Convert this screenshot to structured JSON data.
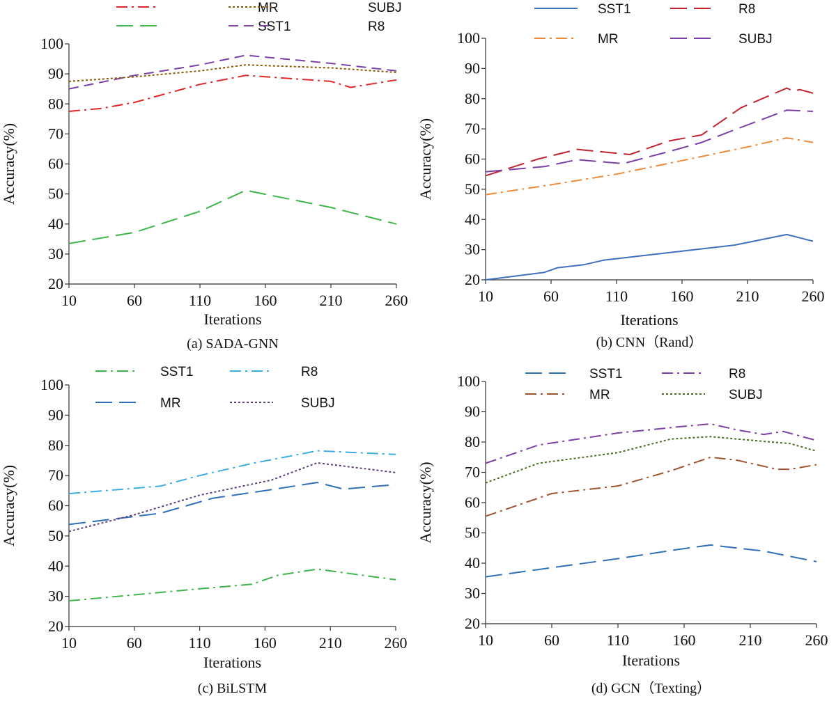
{
  "chart_data": [
    {
      "type": "line",
      "title": "(a) SADA-GNN",
      "xlabel": "Iterations",
      "ylabel": "Accuracy(%)",
      "xlim": [
        10,
        260
      ],
      "ylim": [
        20,
        100
      ],
      "xticks": [
        10,
        60,
        110,
        160,
        210,
        260
      ],
      "yticks": [
        20,
        30,
        40,
        50,
        60,
        70,
        80,
        90,
        100
      ],
      "series": [
        {
          "name": "SST1",
          "color": "#3db54a",
          "dash": "longdash",
          "x": [
            10,
            60,
            110,
            145,
            210,
            260
          ],
          "y": [
            33.5,
            37.2,
            44.2,
            51.2,
            45.5,
            40
          ]
        },
        {
          "name": "R8",
          "color": "#7b3fa6",
          "dash": "dash",
          "x": [
            10,
            60,
            110,
            145,
            210,
            260
          ],
          "y": [
            85,
            89.5,
            93,
            96.2,
            93.5,
            91
          ]
        },
        {
          "name": "MR",
          "color": "#e0282a",
          "dash": "dashdot",
          "x": [
            10,
            35,
            60,
            110,
            145,
            210,
            225,
            260
          ],
          "y": [
            77.5,
            78.5,
            80.5,
            86.5,
            89.5,
            87.5,
            85.5,
            88
          ]
        },
        {
          "name": "SUBJ",
          "color": "#8a5a00",
          "dash": "dot",
          "x": [
            10,
            60,
            110,
            145,
            210,
            260
          ],
          "y": [
            87.5,
            89,
            91,
            93,
            92,
            90.5
          ]
        }
      ]
    },
    {
      "type": "line",
      "title": "(b) CNN（Rand）",
      "xlabel": "Iterations",
      "ylabel": "Accuracy(%)",
      "xlim": [
        10,
        260
      ],
      "ylim": [
        20,
        100
      ],
      "xticks": [
        10,
        60,
        110,
        160,
        210,
        260
      ],
      "yticks": [
        20,
        30,
        40,
        50,
        60,
        70,
        80,
        90,
        100
      ],
      "series": [
        {
          "name": "SST1",
          "color": "#3f6fbf",
          "dash": "solid",
          "x": [
            10,
            55,
            65,
            85,
            100,
            160,
            200,
            240,
            260
          ],
          "y": [
            20,
            22.5,
            24,
            25,
            26.5,
            29.5,
            31.5,
            35,
            32.8
          ]
        },
        {
          "name": "R8",
          "color": "#c0232e",
          "dash": "longdash",
          "x": [
            10,
            50,
            80,
            120,
            150,
            175,
            205,
            240,
            245,
            250,
            260
          ],
          "y": [
            54.5,
            60,
            63.2,
            61.5,
            66,
            68,
            77,
            83.5,
            82.5,
            83,
            81.8
          ]
        },
        {
          "name": "MR",
          "color": "#ef8a3a",
          "dash": "dashdot",
          "x": [
            10,
            60,
            110,
            160,
            210,
            240,
            260
          ],
          "y": [
            48.2,
            51.5,
            55,
            59.5,
            64,
            67,
            65.5
          ]
        },
        {
          "name": "SUBJ",
          "color": "#7b3fa6",
          "dash": "longdash",
          "x": [
            10,
            55,
            80,
            115,
            150,
            175,
            205,
            240,
            260
          ],
          "y": [
            55.8,
            57.5,
            59.8,
            58.5,
            62.5,
            65.5,
            70.5,
            76.2,
            75.8
          ]
        }
      ]
    },
    {
      "type": "line",
      "title": "(c) BiLSTM",
      "xlabel": "Iterations",
      "ylabel": "Accuracy(%)",
      "xlim": [
        10,
        260
      ],
      "ylim": [
        20,
        100
      ],
      "xticks": [
        10,
        60,
        110,
        160,
        210,
        260
      ],
      "yticks": [
        20,
        30,
        40,
        50,
        60,
        70,
        80,
        90,
        100
      ],
      "series": [
        {
          "name": "SST1",
          "color": "#3db54a",
          "dash": "dashdot",
          "x": [
            10,
            60,
            110,
            150,
            170,
            200,
            260
          ],
          "y": [
            28.5,
            30.5,
            32.5,
            34,
            37,
            39,
            35.5
          ]
        },
        {
          "name": "R8",
          "color": "#3aaee0",
          "dash": "dashdot",
          "x": [
            10,
            80,
            110,
            150,
            200,
            260
          ],
          "y": [
            64,
            66.5,
            70,
            74,
            78.2,
            77
          ]
        },
        {
          "name": "MR",
          "color": "#2e6fb5",
          "dash": "longdash",
          "x": [
            10,
            80,
            120,
            160,
            200,
            220,
            260
          ],
          "y": [
            53.8,
            57.5,
            62.5,
            65,
            67.7,
            65.5,
            67
          ]
        },
        {
          "name": "SUBJ",
          "color": "#5a3f7a",
          "dash": "dot",
          "x": [
            10,
            60,
            110,
            165,
            200,
            260
          ],
          "y": [
            51.5,
            57,
            63.5,
            68.5,
            74.2,
            71
          ]
        }
      ]
    },
    {
      "type": "line",
      "title": "(d) GCN（Texting）",
      "xlabel": "Iterations",
      "ylabel": "Accuracy(%)",
      "xlim": [
        10,
        260
      ],
      "ylim": [
        20,
        100
      ],
      "xticks": [
        10,
        60,
        110,
        160,
        210,
        260
      ],
      "yticks": [
        20,
        30,
        40,
        50,
        60,
        70,
        80,
        90,
        100
      ],
      "series": [
        {
          "name": "SST1",
          "color": "#2e6fb5",
          "dash": "longdash",
          "x": [
            10,
            60,
            110,
            155,
            180,
            200,
            220,
            260
          ],
          "y": [
            35.5,
            38.5,
            41.5,
            44.5,
            46,
            45,
            44,
            40.5
          ]
        },
        {
          "name": "R8",
          "color": "#7b3fa6",
          "dash": "dashdot",
          "x": [
            10,
            50,
            110,
            155,
            180,
            200,
            220,
            235,
            260
          ],
          "y": [
            73,
            79,
            83,
            85,
            86,
            84,
            82.5,
            83.5,
            80.5
          ]
        },
        {
          "name": "MR",
          "color": "#a0522d",
          "dash": "dashdot",
          "x": [
            10,
            60,
            110,
            150,
            180,
            200,
            230,
            240,
            260
          ],
          "y": [
            55.5,
            63,
            65.5,
            70.5,
            75,
            74,
            71,
            71,
            72.5
          ]
        },
        {
          "name": "SUBJ",
          "color": "#4a6a1f",
          "dash": "dot",
          "x": [
            10,
            50,
            110,
            150,
            180,
            200,
            240,
            260
          ],
          "y": [
            66.5,
            73,
            76.5,
            81,
            81.8,
            81,
            79.5,
            77
          ]
        }
      ]
    }
  ]
}
